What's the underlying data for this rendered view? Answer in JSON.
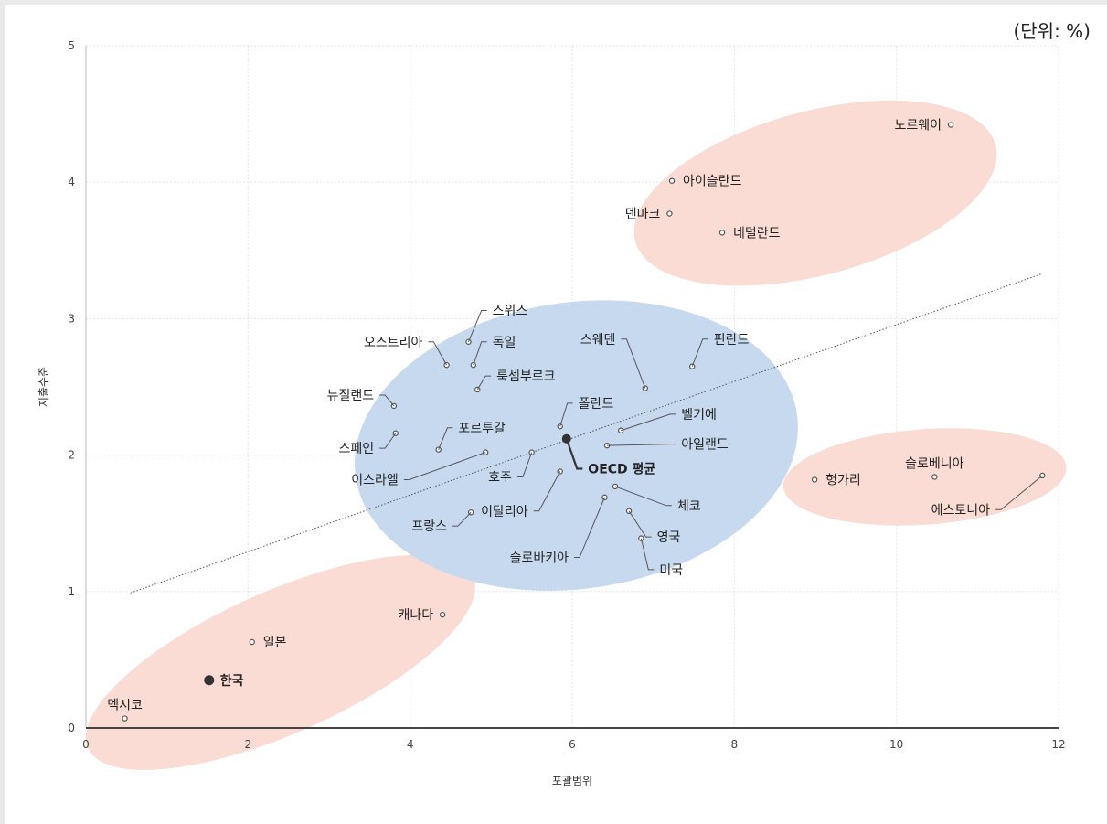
{
  "unit_note": "(단위: %)",
  "chart_data": {
    "type": "scatter",
    "xlabel": "포괄범위",
    "ylabel": "지출수준",
    "xlim": [
      0,
      12
    ],
    "ylim": [
      0,
      5
    ],
    "xticks": [
      0,
      2,
      4,
      6,
      8,
      10,
      12
    ],
    "yticks": [
      0,
      1,
      2,
      3,
      4,
      5
    ],
    "grid": true,
    "colors": {
      "cluster_red": "#fadcd4",
      "cluster_blue": "#c7d9ef",
      "point": "#555555",
      "text": "#222222"
    },
    "trendline": {
      "x": [
        0.55,
        11.8
      ],
      "y": [
        0.99,
        3.33
      ]
    },
    "clusters": [
      {
        "color": "red",
        "center": [
          2.4,
          0.48
        ],
        "radius": [
          2.6,
          0.52
        ],
        "angle_deg": -24
      },
      {
        "color": "blue",
        "center": [
          6.05,
          2.07
        ],
        "radius": [
          2.75,
          1.05
        ],
        "angle_deg": -8
      },
      {
        "color": "red",
        "center": [
          9.0,
          3.92
        ],
        "radius": [
          2.3,
          0.6
        ],
        "angle_deg": -15
      },
      {
        "color": "red",
        "center": [
          10.35,
          1.84
        ],
        "radius": [
          1.75,
          0.35
        ],
        "angle_deg": -4
      }
    ],
    "points": [
      {
        "name": "멕시코",
        "x": 0.48,
        "y": 0.07,
        "label_pos": "above"
      },
      {
        "name": "한국",
        "x": 1.52,
        "y": 0.35,
        "label_pos": "right",
        "bold": true
      },
      {
        "name": "일본",
        "x": 2.05,
        "y": 0.63,
        "label_pos": "right"
      },
      {
        "name": "캐나다",
        "x": 4.4,
        "y": 0.83,
        "label_pos": "left"
      },
      {
        "name": "스위스",
        "x": 4.72,
        "y": 2.83,
        "label_pos": "leader",
        "lx": 4.97,
        "ly": 3.06
      },
      {
        "name": "오스트리아",
        "x": 4.45,
        "y": 2.66,
        "label_pos": "leader",
        "lx": 4.2,
        "ly": 2.83
      },
      {
        "name": "독일",
        "x": 4.78,
        "y": 2.66,
        "label_pos": "leader",
        "lx": 4.97,
        "ly": 2.83
      },
      {
        "name": "룩셈부르크",
        "x": 4.83,
        "y": 2.48,
        "label_pos": "leader",
        "lx": 5.02,
        "ly": 2.58
      },
      {
        "name": "뉴질랜드",
        "x": 3.8,
        "y": 2.36,
        "label_pos": "leader",
        "lx": 3.6,
        "ly": 2.44
      },
      {
        "name": "스페인",
        "x": 3.82,
        "y": 2.16,
        "label_pos": "leader",
        "lx": 3.6,
        "ly": 2.05
      },
      {
        "name": "포르투갈",
        "x": 4.35,
        "y": 2.04,
        "label_pos": "leader",
        "lx": 4.55,
        "ly": 2.2
      },
      {
        "name": "이스라엘",
        "x": 4.93,
        "y": 2.02,
        "label_pos": "leader",
        "lx": 3.9,
        "ly": 1.82
      },
      {
        "name": "호주",
        "x": 5.5,
        "y": 2.02,
        "label_pos": "leader",
        "lx": 5.3,
        "ly": 1.84
      },
      {
        "name": "폴란드",
        "x": 5.85,
        "y": 2.21,
        "label_pos": "leader",
        "lx": 6.03,
        "ly": 2.38
      },
      {
        "name": "스웨덴",
        "x": 6.9,
        "y": 2.49,
        "label_pos": "leader",
        "lx": 6.58,
        "ly": 2.85
      },
      {
        "name": "핀란드",
        "x": 7.48,
        "y": 2.65,
        "label_pos": "leader",
        "lx": 7.7,
        "ly": 2.85
      },
      {
        "name": "벨기에",
        "x": 6.6,
        "y": 2.18,
        "label_pos": "leader",
        "lx": 7.3,
        "ly": 2.3
      },
      {
        "name": "아일랜드",
        "x": 6.43,
        "y": 2.07,
        "label_pos": "leader",
        "lx": 7.3,
        "ly": 2.08
      },
      {
        "name": "OECD 평균",
        "x": 5.93,
        "y": 2.12,
        "label_pos": "leader",
        "lx": 6.15,
        "ly": 1.9,
        "bold": true,
        "mean": true
      },
      {
        "name": "이탈리아",
        "x": 5.85,
        "y": 1.88,
        "label_pos": "leader",
        "lx": 5.5,
        "ly": 1.59
      },
      {
        "name": "체코",
        "x": 6.53,
        "y": 1.77,
        "label_pos": "leader",
        "lx": 7.25,
        "ly": 1.63
      },
      {
        "name": "슬로바키아",
        "x": 6.4,
        "y": 1.69,
        "label_pos": "leader",
        "lx": 6.0,
        "ly": 1.25
      },
      {
        "name": "프랑스",
        "x": 4.75,
        "y": 1.58,
        "label_pos": "leader",
        "lx": 4.5,
        "ly": 1.48
      },
      {
        "name": "영국",
        "x": 6.7,
        "y": 1.59,
        "label_pos": "leader",
        "lx": 7.0,
        "ly": 1.4
      },
      {
        "name": "미국",
        "x": 6.85,
        "y": 1.39,
        "label_pos": "leader",
        "lx": 7.03,
        "ly": 1.16
      },
      {
        "name": "노르웨이",
        "x": 10.67,
        "y": 4.42,
        "label_pos": "left"
      },
      {
        "name": "아이슬란드",
        "x": 7.23,
        "y": 4.01,
        "label_pos": "right"
      },
      {
        "name": "덴마크",
        "x": 7.2,
        "y": 3.77,
        "label_pos": "left"
      },
      {
        "name": "네덜란드",
        "x": 7.85,
        "y": 3.63,
        "label_pos": "right"
      },
      {
        "name": "헝가리",
        "x": 8.99,
        "y": 1.82,
        "label_pos": "right"
      },
      {
        "name": "슬로베니아",
        "x": 10.47,
        "y": 1.84,
        "label_pos": "above"
      },
      {
        "name": "에스토니아",
        "x": 11.8,
        "y": 1.85,
        "label_pos": "leader",
        "lx": 11.2,
        "ly": 1.6
      }
    ]
  }
}
